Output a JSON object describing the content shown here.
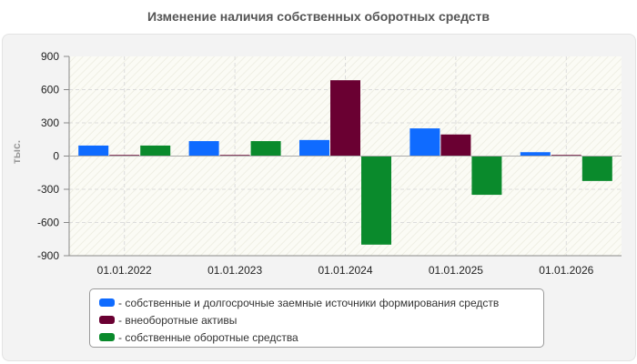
{
  "title": "Изменение наличия собственных оборотных средств",
  "ylabel": "тыс.",
  "chart_data": {
    "type": "bar",
    "title": "Изменение наличия собственных оборотных средств",
    "xlabel": "",
    "ylabel": "тыс.",
    "ylim": [
      -900,
      900
    ],
    "yticks": [
      900,
      600,
      300,
      0,
      -300,
      -600,
      -900
    ],
    "ytick_labels": [
      "900",
      "600",
      "300",
      "0",
      "-300",
      "-600",
      "-900"
    ],
    "grid": true,
    "legend_position": "bottom",
    "categories": [
      "01.01.2022",
      "01.01.2023",
      "01.01.2024",
      "01.01.2025",
      "01.01.2026"
    ],
    "series": [
      {
        "name": "- собственные и долгосрочные заемные источники формирования средств",
        "color": "#0f6bff",
        "values": [
          95,
          135,
          145,
          250,
          35
        ]
      },
      {
        "name": "- внеоборотные активы",
        "color": "#6a0032",
        "values": [
          10,
          10,
          685,
          195,
          10
        ]
      },
      {
        "name": "- собственные оборотные средства",
        "color": "#0a8a2c",
        "values": [
          95,
          135,
          -800,
          -350,
          -225
        ]
      }
    ]
  }
}
